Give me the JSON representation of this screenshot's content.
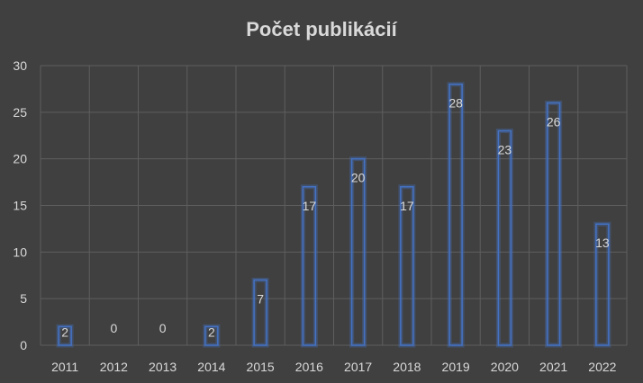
{
  "chart_data": {
    "type": "bar",
    "title": "Počet publikácií",
    "categories": [
      "2011",
      "2012",
      "2013",
      "2014",
      "2015",
      "2016",
      "2017",
      "2018",
      "2019",
      "2020",
      "2021",
      "2022"
    ],
    "values": [
      2,
      0,
      0,
      2,
      7,
      17,
      20,
      17,
      28,
      23,
      26,
      13
    ],
    "ylim": [
      0,
      30
    ],
    "yticks": [
      0,
      5,
      10,
      15,
      20,
      25,
      30
    ],
    "grid": true,
    "legend": "none",
    "colors": {
      "bar": "#4472c4",
      "background": "#404040",
      "text": "#d9d9d9",
      "grid": "#5e5e5e"
    }
  }
}
